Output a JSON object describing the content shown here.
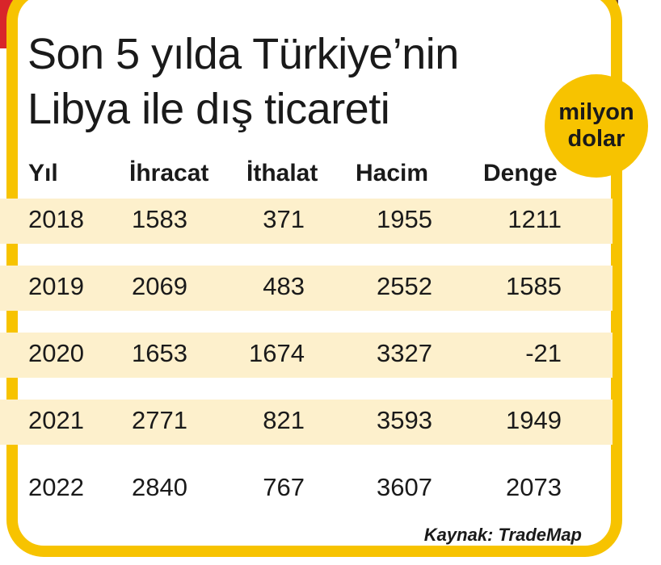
{
  "header": {
    "title_lines": [
      "Son 5 yılda Türkiye’nin",
      "Libya ile dış ticareti"
    ],
    "unit_badge": "milyon dolar"
  },
  "table": {
    "columns": [
      "Yıl",
      "İhracat",
      "İthalat",
      "Hacim",
      "Denge"
    ],
    "rows": [
      [
        2018,
        1583,
        371,
        1955,
        1211
      ],
      [
        2019,
        2069,
        483,
        2552,
        1585
      ],
      [
        2020,
        1653,
        1674,
        3327,
        -21
      ],
      [
        2021,
        2771,
        821,
        3593,
        1949
      ],
      [
        2022,
        2840,
        767,
        3607,
        2073
      ]
    ]
  },
  "source": "Kaynak: TradeMap"
}
